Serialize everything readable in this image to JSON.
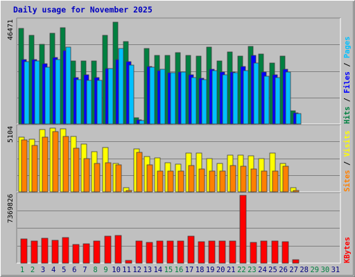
{
  "chart_data": {
    "type": "bar",
    "title": "Daily usage for November 2025",
    "categories": [
      "1",
      "2",
      "3",
      "4",
      "5",
      "6",
      "7",
      "8",
      "9",
      "10",
      "11",
      "12",
      "13",
      "14",
      "15",
      "16",
      "17",
      "18",
      "19",
      "20",
      "21",
      "22",
      "23",
      "24",
      "25",
      "26",
      "27",
      "28",
      "29",
      "30",
      "31"
    ],
    "weekend_days": [
      "1",
      "2",
      "8",
      "9",
      "15",
      "16",
      "22",
      "23",
      "29",
      "30"
    ],
    "panels": [
      {
        "id": "hits-files-pages",
        "ymax_label": "46471",
        "ymax": 46471,
        "series": [
          {
            "name": "Hits",
            "color": "#008040",
            "values": [
              43000,
              40000,
              36000,
              41000,
              43500,
              28500,
              28500,
              28500,
              40000,
              46000,
              37000,
              2800,
              34000,
              31000,
              31000,
              32000,
              31000,
              30500,
              34500,
              28500,
              32500,
              30500,
              35000,
              31500,
              27500,
              30500,
              6000,
              0,
              0,
              0,
              0
            ]
          },
          {
            "name": "Files",
            "color": "#0000ff",
            "values": [
              29000,
              29000,
              27000,
              30000,
              33000,
              21000,
              22000,
              21000,
              25000,
              29000,
              28000,
              1800,
              26000,
              24000,
              23000,
              23500,
              22000,
              20500,
              24500,
              23500,
              23500,
              26000,
              31000,
              23500,
              22000,
              24500,
              5000,
              0,
              0,
              0,
              0
            ]
          },
          {
            "name": "Pages",
            "color": "#00c0ff",
            "values": [
              28000,
              28500,
              25500,
              29000,
              34500,
              20000,
              19500,
              19500,
              25000,
              34000,
              26500,
              1500,
              25500,
              24500,
              23000,
              23500,
              21000,
              20000,
              24000,
              22000,
              23000,
              24000,
              27500,
              21500,
              21000,
              23500,
              4600,
              0,
              0,
              0,
              0
            ]
          }
        ],
        "y_axis_legend": [
          {
            "text": "Hits",
            "color": "#008040"
          },
          {
            "text": "Files",
            "color": "#0000ff"
          },
          {
            "text": "Pages",
            "color": "#00c0ff"
          }
        ]
      },
      {
        "id": "visits-sites",
        "ymax_label": "5104",
        "ymax": 5104,
        "series": [
          {
            "name": "Visits",
            "color": "#ffff00",
            "values": [
              4340,
              4170,
              4930,
              5060,
              4990,
              4410,
              3800,
              3180,
              3500,
              2260,
              340,
              3400,
              2790,
              2690,
              2310,
              2170,
              3080,
              3090,
              2660,
              2270,
              2890,
              2920,
              2880,
              2650,
              3070,
              2260,
              330,
              0,
              0,
              0,
              0
            ]
          },
          {
            "name": "Sites",
            "color": "#ff8000",
            "values": [
              4130,
              3690,
              4350,
              4790,
              4380,
              3440,
              2640,
              2250,
              2310,
              2130,
              120,
              3130,
              2130,
              1650,
              1630,
              1650,
              2060,
              1820,
              1650,
              1650,
              2070,
              2050,
              1830,
              1650,
              1670,
              2020,
              130,
              0,
              0,
              0,
              0
            ]
          }
        ],
        "y_axis_legend": [
          {
            "text": "Sites",
            "color": "#ff8000"
          },
          {
            "text": "Visits",
            "color": "#ffff00"
          }
        ]
      },
      {
        "id": "kbytes",
        "ymax_label": "7369826",
        "ymax": 7369826,
        "series": [
          {
            "name": "KBytes",
            "color": "#ff0000",
            "values": [
              2600000,
              2380000,
              2730000,
              2450000,
              2750000,
              2060000,
              2140000,
              2400000,
              2960000,
              3000000,
              330000,
              2400000,
              2290000,
              2400000,
              2370000,
              2370000,
              2930000,
              2310000,
              2390000,
              2420000,
              2420000,
              7370000,
              2280000,
              2440000,
              2420000,
              2350000,
              350000,
              0,
              0,
              0,
              0
            ]
          }
        ],
        "y_axis_legend": [
          {
            "text": "KBytes",
            "color": "#ff0000"
          }
        ]
      }
    ],
    "colors": {
      "plot_bg": "#c0c0c0",
      "grid": "#7f7f7f",
      "weekday_label": "#00007f",
      "weekend_label": "#008040",
      "title": "#0000c0"
    }
  }
}
